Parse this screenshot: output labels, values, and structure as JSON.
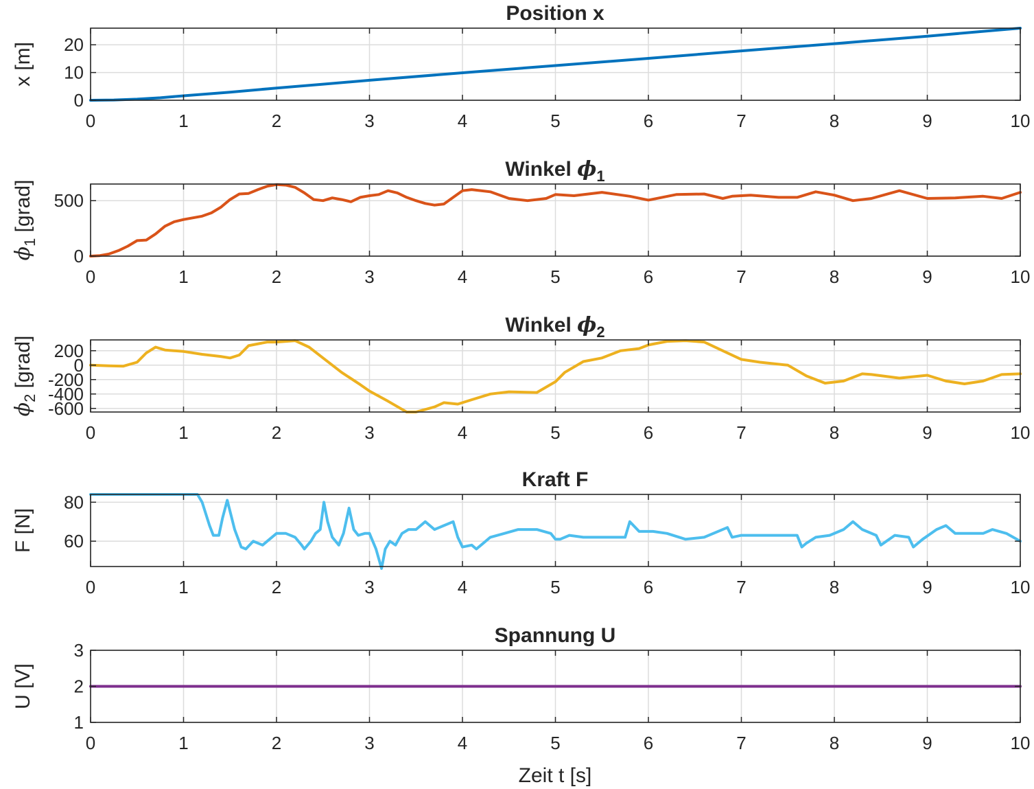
{
  "xlabel": "Zeit t [s]",
  "chart_data": [
    {
      "type": "line",
      "title": "Position x",
      "title_sym": "",
      "title_sub": "",
      "ylabel": "x [m]",
      "ylabel_sym": "",
      "ylabel_sub": "",
      "xlim": [
        0,
        10
      ],
      "ylim": [
        0,
        26
      ],
      "xticks": [
        "0",
        "1",
        "2",
        "3",
        "4",
        "5",
        "6",
        "7",
        "8",
        "9",
        "10"
      ],
      "yticks": [
        0,
        10,
        20
      ],
      "yticklabels": [
        "0",
        "10",
        "20"
      ],
      "grid": true,
      "color": "#0072BD",
      "x": [
        0,
        0.25,
        0.5,
        0.75,
        1,
        1.5,
        2,
        2.5,
        3,
        4,
        5,
        6,
        7,
        8,
        9,
        10
      ],
      "y": [
        0,
        0.1,
        0.4,
        0.9,
        1.6,
        2.9,
        4.4,
        5.8,
        7.2,
        9.9,
        12.5,
        15.1,
        17.8,
        20.4,
        23.1,
        26
      ]
    },
    {
      "type": "line",
      "title": "Winkel ",
      "title_sym": "ϕ",
      "title_sub": "1",
      "ylabel": " [grad]",
      "ylabel_sym": "ϕ",
      "ylabel_sub": "1",
      "xlim": [
        0,
        10
      ],
      "ylim": [
        0,
        650
      ],
      "xticks": [
        "0",
        "1",
        "2",
        "3",
        "4",
        "5",
        "6",
        "7",
        "8",
        "9",
        "10"
      ],
      "yticks": [
        0,
        500
      ],
      "yticklabels": [
        "0",
        "500"
      ],
      "grid": true,
      "color": "#D95319",
      "x": [
        0,
        0.1,
        0.2,
        0.3,
        0.4,
        0.5,
        0.6,
        0.7,
        0.8,
        0.9,
        1.0,
        1.2,
        1.3,
        1.4,
        1.5,
        1.6,
        1.7,
        1.8,
        1.9,
        2.0,
        2.1,
        2.2,
        2.3,
        2.4,
        2.5,
        2.6,
        2.7,
        2.8,
        2.9,
        3.0,
        3.1,
        3.2,
        3.3,
        3.4,
        3.5,
        3.6,
        3.7,
        3.8,
        3.9,
        4.0,
        4.1,
        4.3,
        4.5,
        4.7,
        4.9,
        5.0,
        5.2,
        5.5,
        5.8,
        6.0,
        6.3,
        6.6,
        6.8,
        6.9,
        7.1,
        7.4,
        7.6,
        7.8,
        8.0,
        8.2,
        8.4,
        8.7,
        9.0,
        9.3,
        9.6,
        9.8,
        10.0
      ],
      "y": [
        0,
        5,
        20,
        50,
        90,
        140,
        145,
        200,
        270,
        310,
        330,
        360,
        390,
        440,
        510,
        560,
        565,
        600,
        630,
        645,
        640,
        620,
        570,
        510,
        500,
        525,
        510,
        490,
        530,
        545,
        555,
        590,
        570,
        530,
        500,
        475,
        460,
        470,
        530,
        590,
        600,
        580,
        520,
        500,
        520,
        555,
        545,
        575,
        540,
        505,
        555,
        560,
        520,
        540,
        550,
        530,
        530,
        580,
        550,
        500,
        520,
        590,
        520,
        525,
        540,
        520,
        575
      ]
    },
    {
      "type": "line",
      "title": "Winkel ",
      "title_sym": "ϕ",
      "title_sub": "2",
      "ylabel": " [grad]",
      "ylabel_sym": "ϕ",
      "ylabel_sub": "2",
      "xlim": [
        0,
        10
      ],
      "ylim": [
        -650,
        350
      ],
      "xticks": [
        "0",
        "1",
        "2",
        "3",
        "4",
        "5",
        "6",
        "7",
        "8",
        "9",
        "10"
      ],
      "yticks": [
        -600,
        -400,
        -200,
        0,
        200
      ],
      "yticklabels": [
        "-600",
        "-400",
        "-200",
        "0",
        "200"
      ],
      "grid": true,
      "color": "#EDB120",
      "x": [
        0,
        0.2,
        0.35,
        0.5,
        0.6,
        0.7,
        0.8,
        1.0,
        1.2,
        1.4,
        1.5,
        1.6,
        1.7,
        1.9,
        2.0,
        2.1,
        2.2,
        2.35,
        2.5,
        2.7,
        2.9,
        3.0,
        3.2,
        3.4,
        3.5,
        3.7,
        3.8,
        3.95,
        4.1,
        4.3,
        4.5,
        4.8,
        5.0,
        5.1,
        5.3,
        5.5,
        5.7,
        5.9,
        6.0,
        6.2,
        6.4,
        6.6,
        6.8,
        7.0,
        7.2,
        7.5,
        7.7,
        7.9,
        8.1,
        8.3,
        8.4,
        8.7,
        9.0,
        9.2,
        9.4,
        9.6,
        9.8,
        10.0
      ],
      "y": [
        0,
        -10,
        -15,
        40,
        170,
        250,
        210,
        190,
        150,
        120,
        100,
        140,
        270,
        320,
        320,
        330,
        340,
        250,
        100,
        -100,
        -270,
        -360,
        -500,
        -650,
        -650,
        -580,
        -520,
        -540,
        -480,
        -400,
        -370,
        -380,
        -230,
        -100,
        50,
        100,
        200,
        230,
        280,
        330,
        340,
        320,
        200,
        80,
        40,
        0,
        -150,
        -250,
        -220,
        -120,
        -130,
        -180,
        -140,
        -220,
        -260,
        -220,
        -130,
        -120
      ]
    },
    {
      "type": "line",
      "title": "Kraft F",
      "title_sym": "",
      "title_sub": "",
      "ylabel": "F [N]",
      "ylabel_sym": "",
      "ylabel_sub": "",
      "xlim": [
        0,
        10
      ],
      "ylim": [
        47,
        84
      ],
      "xticks": [
        "0",
        "1",
        "2",
        "3",
        "4",
        "5",
        "6",
        "7",
        "8",
        "9",
        "10"
      ],
      "yticks": [
        60,
        80
      ],
      "yticklabels": [
        "60",
        "80"
      ],
      "grid": true,
      "color": "#4DBEEE",
      "x": [
        0,
        1.15,
        1.2,
        1.28,
        1.32,
        1.38,
        1.42,
        1.47,
        1.55,
        1.62,
        1.67,
        1.75,
        1.85,
        2.0,
        2.1,
        2.2,
        2.27,
        2.3,
        2.37,
        2.42,
        2.47,
        2.51,
        2.55,
        2.6,
        2.67,
        2.72,
        2.78,
        2.83,
        2.88,
        2.95,
        3.0,
        3.07,
        3.13,
        3.17,
        3.22,
        3.28,
        3.35,
        3.42,
        3.5,
        3.6,
        3.7,
        3.8,
        3.9,
        3.95,
        4.0,
        4.1,
        4.15,
        4.2,
        4.3,
        4.45,
        4.6,
        4.8,
        4.95,
        5.0,
        5.05,
        5.15,
        5.3,
        5.5,
        5.7,
        5.75,
        5.8,
        5.9,
        6.05,
        6.2,
        6.4,
        6.6,
        6.85,
        6.9,
        7.0,
        7.3,
        7.6,
        7.65,
        7.7,
        7.8,
        7.95,
        8.1,
        8.2,
        8.3,
        8.45,
        8.5,
        8.65,
        8.8,
        8.85,
        8.95,
        9.1,
        9.2,
        9.3,
        9.6,
        9.7,
        9.85,
        10.0
      ],
      "y": [
        84,
        84,
        80,
        68,
        63,
        63,
        72,
        81,
        66,
        57,
        56,
        60,
        58,
        64,
        64,
        62,
        58,
        56,
        60,
        64,
        66,
        80,
        70,
        62,
        58,
        64,
        77,
        66,
        63,
        64,
        64,
        56,
        46,
        56,
        60,
        58,
        64,
        66,
        66,
        70,
        66,
        68,
        70,
        62,
        57,
        58,
        56,
        58,
        62,
        64,
        66,
        66,
        64,
        61,
        61,
        63,
        62,
        62,
        62,
        62,
        70,
        65,
        65,
        64,
        61,
        62,
        67,
        62,
        63,
        63,
        63,
        57,
        59,
        62,
        63,
        66,
        70,
        66,
        63,
        58,
        63,
        62,
        57,
        61,
        66,
        68,
        64,
        64,
        66,
        64,
        60
      ]
    },
    {
      "type": "line",
      "title": "Spannung U",
      "title_sym": "",
      "title_sub": "",
      "ylabel": "U [V]",
      "ylabel_sym": "",
      "ylabel_sub": "",
      "xlim": [
        0,
        10
      ],
      "ylim": [
        1,
        3
      ],
      "xticks": [
        "0",
        "1",
        "2",
        "3",
        "4",
        "5",
        "6",
        "7",
        "8",
        "9",
        "10"
      ],
      "yticks": [
        1,
        2,
        3
      ],
      "yticklabels": [
        "1",
        "2",
        "3"
      ],
      "grid": true,
      "color": "#7E2F8E",
      "x": [
        0,
        10
      ],
      "y": [
        2,
        2
      ]
    }
  ]
}
